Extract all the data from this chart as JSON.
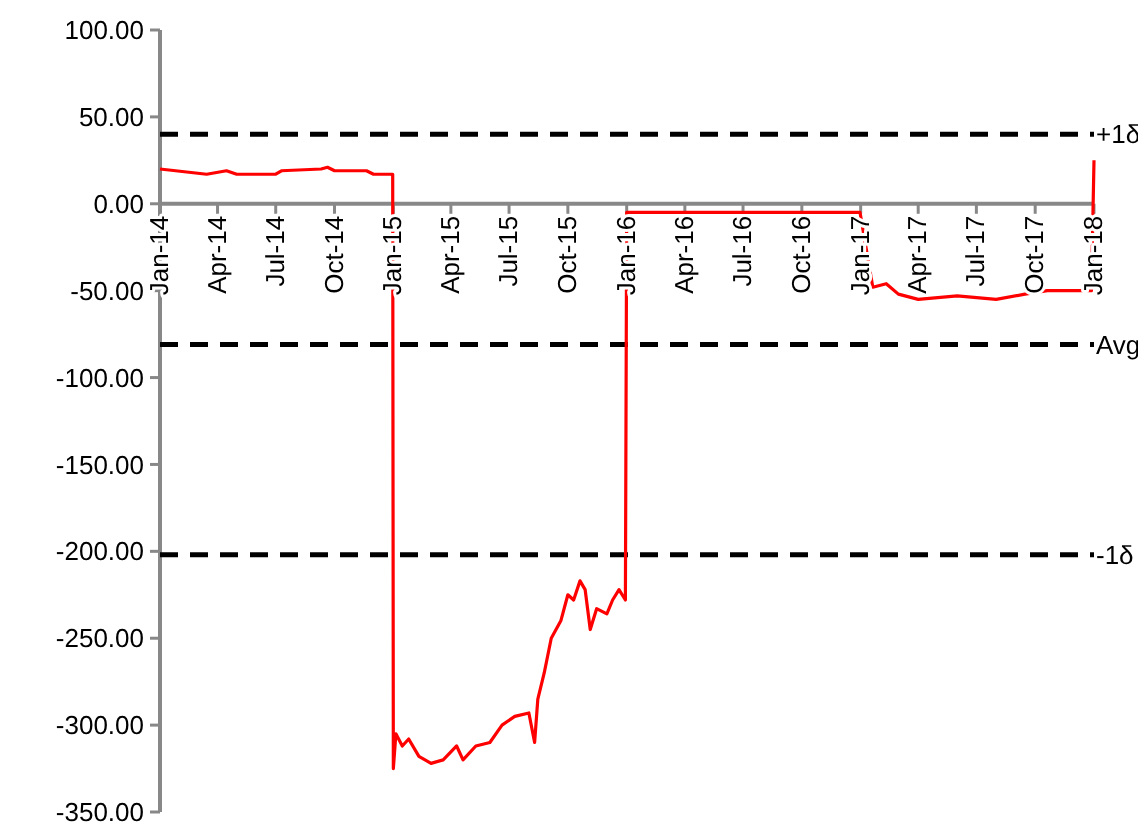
{
  "chart_data": {
    "type": "line",
    "x": [
      "2014-01-01",
      "2014-03-15",
      "2014-04-15",
      "2014-05-01",
      "2014-07-01",
      "2014-07-10",
      "2014-09-10",
      "2014-09-20",
      "2014-10-01",
      "2014-11-20",
      "2014-12-01",
      "2014-12-31",
      "2015-01-01",
      "2015-01-05",
      "2015-01-15",
      "2015-01-25",
      "2015-02-10",
      "2015-03-01",
      "2015-03-20",
      "2015-04-10",
      "2015-04-20",
      "2015-05-10",
      "2015-06-01",
      "2015-06-20",
      "2015-07-10",
      "2015-08-01",
      "2015-08-10",
      "2015-08-15",
      "2015-08-25",
      "2015-09-05",
      "2015-09-20",
      "2015-10-01",
      "2015-10-10",
      "2015-10-20",
      "2015-10-28",
      "2015-11-05",
      "2015-11-15",
      "2015-12-01",
      "2015-12-10",
      "2015-12-20",
      "2015-12-30",
      "2016-01-01",
      "2016-12-31",
      "2017-01-20",
      "2017-02-10",
      "2017-03-01",
      "2017-04-01",
      "2017-06-01",
      "2017-08-01",
      "2017-09-15",
      "2017-10-20",
      "2017-12-28",
      "2018-01-01"
    ],
    "series": [
      {
        "color": "#ff0000",
        "values": [
          20,
          17,
          19,
          17,
          17,
          19,
          20,
          21,
          19,
          19,
          17,
          17,
          -325,
          -305,
          -312,
          -308,
          -318,
          -322,
          -320,
          -312,
          -320,
          -312,
          -310,
          -300,
          -295,
          -293,
          -310,
          -285,
          -270,
          -250,
          -240,
          -225,
          -228,
          -217,
          -222,
          -245,
          -233,
          -236,
          -228,
          -222,
          -228,
          -5,
          -5,
          -48,
          -46,
          -52,
          -55,
          -53,
          -55,
          -52,
          -50,
          -50,
          25
        ]
      }
    ],
    "xlim": [
      "2014-01-01",
      "2018-01-01"
    ],
    "xticks": [
      {
        "value": "2014-01-01",
        "label": "Jan-14"
      },
      {
        "value": "2014-04-01",
        "label": "Apr-14"
      },
      {
        "value": "2014-07-01",
        "label": "Jul-14"
      },
      {
        "value": "2014-10-01",
        "label": "Oct-14"
      },
      {
        "value": "2015-01-01",
        "label": "Jan-15"
      },
      {
        "value": "2015-04-01",
        "label": "Apr-15"
      },
      {
        "value": "2015-07-01",
        "label": "Jul-15"
      },
      {
        "value": "2015-10-01",
        "label": "Oct-15"
      },
      {
        "value": "2016-01-01",
        "label": "Jan-16"
      },
      {
        "value": "2016-04-01",
        "label": "Apr-16"
      },
      {
        "value": "2016-07-01",
        "label": "Jul-16"
      },
      {
        "value": "2016-10-01",
        "label": "Oct-16"
      },
      {
        "value": "2017-01-01",
        "label": "Jan-17"
      },
      {
        "value": "2017-04-01",
        "label": "Apr-17"
      },
      {
        "value": "2017-07-01",
        "label": "Jul-17"
      },
      {
        "value": "2017-10-01",
        "label": "Oct-17"
      },
      {
        "value": "2018-01-01",
        "label": "Jan-18"
      }
    ],
    "ylim": [
      -350,
      100
    ],
    "yticks": [
      {
        "value": 100,
        "label": "100.00"
      },
      {
        "value": 50,
        "label": "50.00"
      },
      {
        "value": 0,
        "label": "0.00"
      },
      {
        "value": -50,
        "label": "-50.00"
      },
      {
        "value": -100,
        "label": "-100.00"
      },
      {
        "value": -150,
        "label": "-150.00"
      },
      {
        "value": -200,
        "label": "-200.00"
      },
      {
        "value": -250,
        "label": "-250.00"
      },
      {
        "value": -300,
        "label": "-300.00"
      },
      {
        "value": -350,
        "label": "-350.00"
      }
    ],
    "ref_lines": [
      {
        "axis": "y",
        "value": 40,
        "label": "+1δ",
        "color": "#000000",
        "line_style": "dashed"
      },
      {
        "axis": "y",
        "value": -81,
        "label": "Avg",
        "color": "#000000",
        "line_style": "dashed"
      },
      {
        "axis": "y",
        "value": -202,
        "label": "-1δ",
        "color": "#000000",
        "line_style": "dashed"
      }
    ],
    "grid": false,
    "marker": "none",
    "line_style": "solid"
  }
}
